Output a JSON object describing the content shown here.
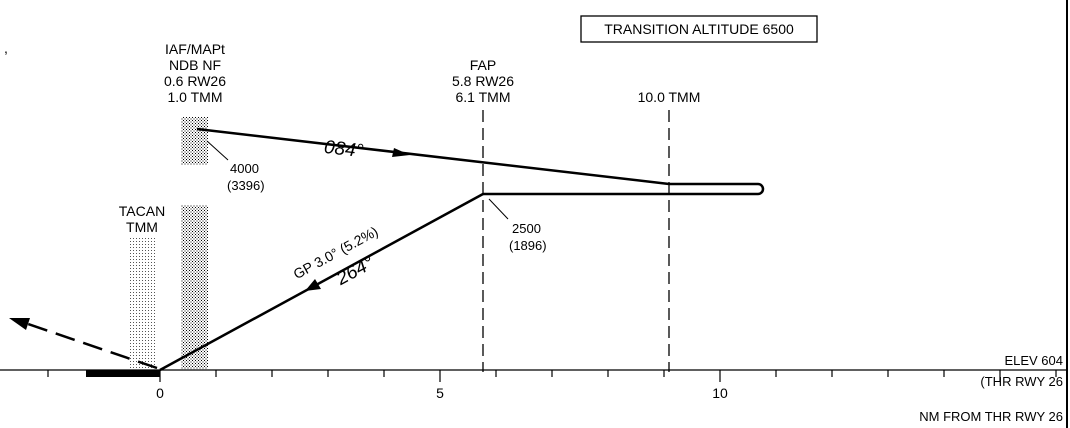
{
  "header": {
    "apostrophe": ",",
    "transition_altitude": "TRANSITION ALTITUDE 6500"
  },
  "fixes": {
    "iaf": {
      "lines": [
        "IAF/MAPt",
        "NDB NF",
        "0.6 RW26",
        "1.0 TMM"
      ]
    },
    "fap": {
      "lines": [
        "FAP",
        "5.8 RW26",
        "6.1 TMM"
      ]
    },
    "tmm10": {
      "lines": [
        "10.0 TMM"
      ]
    },
    "tacan": {
      "lines": [
        "TACAN",
        "TMM"
      ]
    }
  },
  "altitudes": {
    "iaf": {
      "alt": "4000",
      "height": "(3396)"
    },
    "fap": {
      "alt": "2500",
      "height": "(1896)"
    }
  },
  "courses": {
    "outbound": "084°",
    "inbound": "264°",
    "glidepath": "GP 3.0° (5.2%)"
  },
  "axis": {
    "ticks": [
      "0",
      "5",
      "10"
    ],
    "elevation": "ELEV 604",
    "threshold": "(THR RWY 26",
    "unit_label": "NM FROM THR RWY 26"
  }
}
